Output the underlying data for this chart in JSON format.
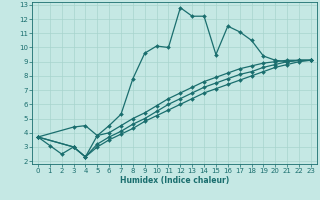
{
  "xlabel": "Humidex (Indice chaleur)",
  "xlim": [
    -0.5,
    23.5
  ],
  "ylim": [
    1.8,
    13.2
  ],
  "xticks": [
    0,
    1,
    2,
    3,
    4,
    5,
    6,
    7,
    8,
    9,
    10,
    11,
    12,
    13,
    14,
    15,
    16,
    17,
    18,
    19,
    20,
    21,
    22,
    23
  ],
  "yticks": [
    2,
    3,
    4,
    5,
    6,
    7,
    8,
    9,
    10,
    11,
    12,
    13
  ],
  "background_color": "#c5e8e4",
  "grid_color": "#a8d4ce",
  "line_color": "#1a6e6e",
  "lines": [
    {
      "x": [
        0,
        1,
        2,
        3,
        4,
        5,
        6,
        7,
        8,
        9,
        10,
        11,
        12,
        13,
        14,
        15,
        16,
        17,
        18,
        19,
        20,
        21,
        22,
        23
      ],
      "y": [
        3.7,
        3.1,
        2.5,
        3.0,
        2.3,
        3.8,
        4.5,
        5.3,
        7.8,
        9.6,
        10.1,
        10.0,
        12.8,
        12.2,
        12.2,
        9.5,
        11.5,
        11.1,
        10.5,
        9.4,
        9.1,
        9.0,
        9.1,
        9.1
      ]
    },
    {
      "x": [
        0,
        3,
        4,
        5,
        6,
        7,
        8,
        9,
        10,
        11,
        12,
        13,
        14,
        15,
        16,
        17,
        18,
        19,
        20,
        21,
        22,
        23
      ],
      "y": [
        3.7,
        4.4,
        4.5,
        3.8,
        4.0,
        4.5,
        5.0,
        5.4,
        5.9,
        6.4,
        6.8,
        7.2,
        7.6,
        7.9,
        8.2,
        8.5,
        8.7,
        8.9,
        9.0,
        9.1,
        9.1,
        9.1
      ]
    },
    {
      "x": [
        0,
        3,
        4,
        5,
        6,
        7,
        8,
        9,
        10,
        11,
        12,
        13,
        14,
        15,
        16,
        17,
        18,
        19,
        20,
        21,
        22,
        23
      ],
      "y": [
        3.7,
        3.0,
        2.3,
        3.2,
        3.7,
        4.1,
        4.6,
        5.0,
        5.5,
        6.0,
        6.4,
        6.8,
        7.2,
        7.5,
        7.8,
        8.1,
        8.3,
        8.6,
        8.8,
        9.0,
        9.1,
        9.1
      ]
    },
    {
      "x": [
        0,
        3,
        4,
        5,
        6,
        7,
        8,
        9,
        10,
        11,
        12,
        13,
        14,
        15,
        16,
        17,
        18,
        19,
        20,
        21,
        22,
        23
      ],
      "y": [
        3.7,
        3.0,
        2.3,
        3.0,
        3.5,
        3.9,
        4.3,
        4.8,
        5.2,
        5.6,
        6.0,
        6.4,
        6.8,
        7.1,
        7.4,
        7.7,
        8.0,
        8.3,
        8.6,
        8.8,
        9.0,
        9.1
      ]
    }
  ],
  "marker": "D",
  "markersize": 2.0,
  "linewidth": 0.9,
  "axis_fontsize": 5.5,
  "tick_fontsize": 5.0
}
